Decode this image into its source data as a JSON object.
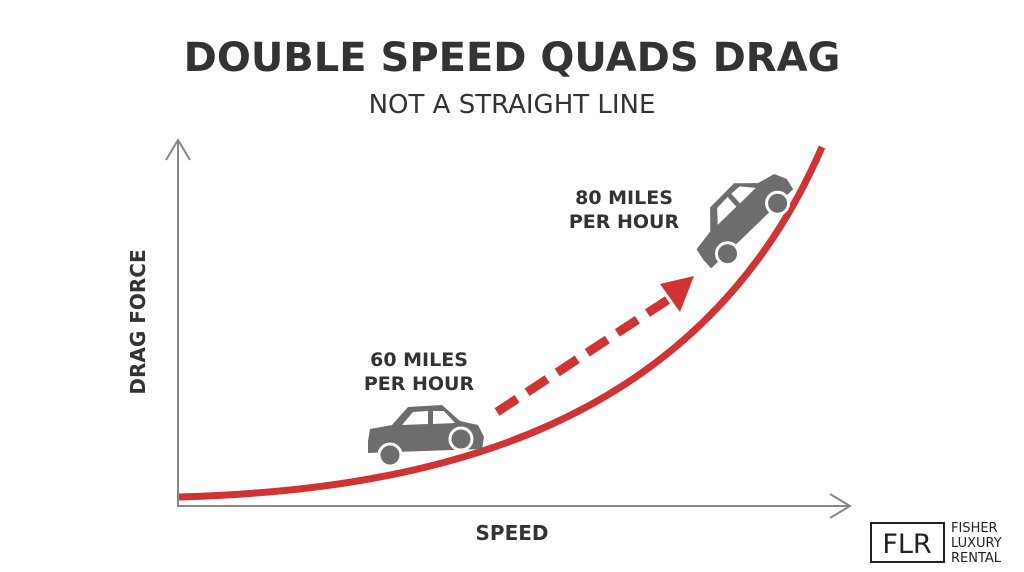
{
  "header": {
    "title": "DOUBLE SPEED QUADS DRAG",
    "subtitle": "NOT A STRAIGHT LINE"
  },
  "axes": {
    "y_label": "DRAG FORCE",
    "x_label": "SPEED"
  },
  "annotations": [
    {
      "lines": [
        "60 MILES",
        "PER HOUR"
      ]
    },
    {
      "lines": [
        "80 MILES",
        "PER HOUR"
      ]
    }
  ],
  "logo": {
    "mark": "FLR",
    "lines": [
      "FISHER",
      "LUXURY",
      "RENTAL"
    ]
  }
}
